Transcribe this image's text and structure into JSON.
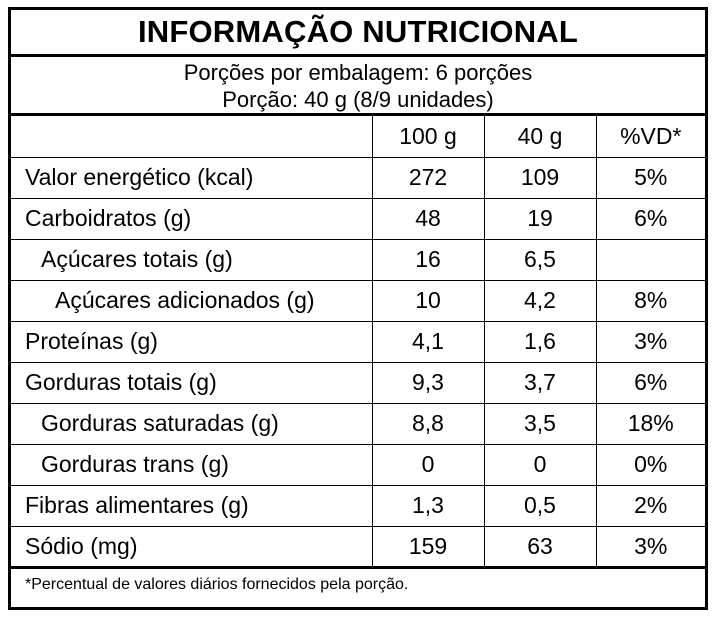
{
  "title": "INFORMAÇÃO NUTRICIONAL",
  "serving": {
    "per_package": "Porções por embalagem: 6 porções",
    "portion": "Porção: 40 g (8/9 unidades)"
  },
  "columns": [
    "",
    "100 g",
    "40 g",
    "%VD*"
  ],
  "rows": [
    {
      "label": "Valor energético (kcal)",
      "per100": "272",
      "perPortion": "109",
      "vd": "5%"
    },
    {
      "label": "Carboidratos (g)",
      "per100": "48",
      "perPortion": "19",
      "vd": "6%"
    },
    {
      "label": "Açúcares totais (g)",
      "per100": "16",
      "perPortion": "6,5",
      "vd": ""
    },
    {
      "label": "Açúcares adicionados (g)",
      "per100": "10",
      "perPortion": "4,2",
      "vd": "8%"
    },
    {
      "label": "Proteínas (g)",
      "per100": "4,1",
      "perPortion": "1,6",
      "vd": "3%"
    },
    {
      "label": "Gorduras totais (g)",
      "per100": "9,3",
      "perPortion": "3,7",
      "vd": "6%"
    },
    {
      "label": "Gorduras saturadas (g)",
      "per100": "8,8",
      "perPortion": "3,5",
      "vd": "18%"
    },
    {
      "label": "Gorduras trans (g)",
      "per100": "0",
      "perPortion": "0",
      "vd": "0%"
    },
    {
      "label": "Fibras alimentares (g)",
      "per100": "1,3",
      "perPortion": "0,5",
      "vd": "2%"
    },
    {
      "label": "Sódio (mg)",
      "per100": "159",
      "perPortion": "63",
      "vd": "3%"
    }
  ],
  "footnote": "*Percentual de valores diários fornecidos pela porção."
}
